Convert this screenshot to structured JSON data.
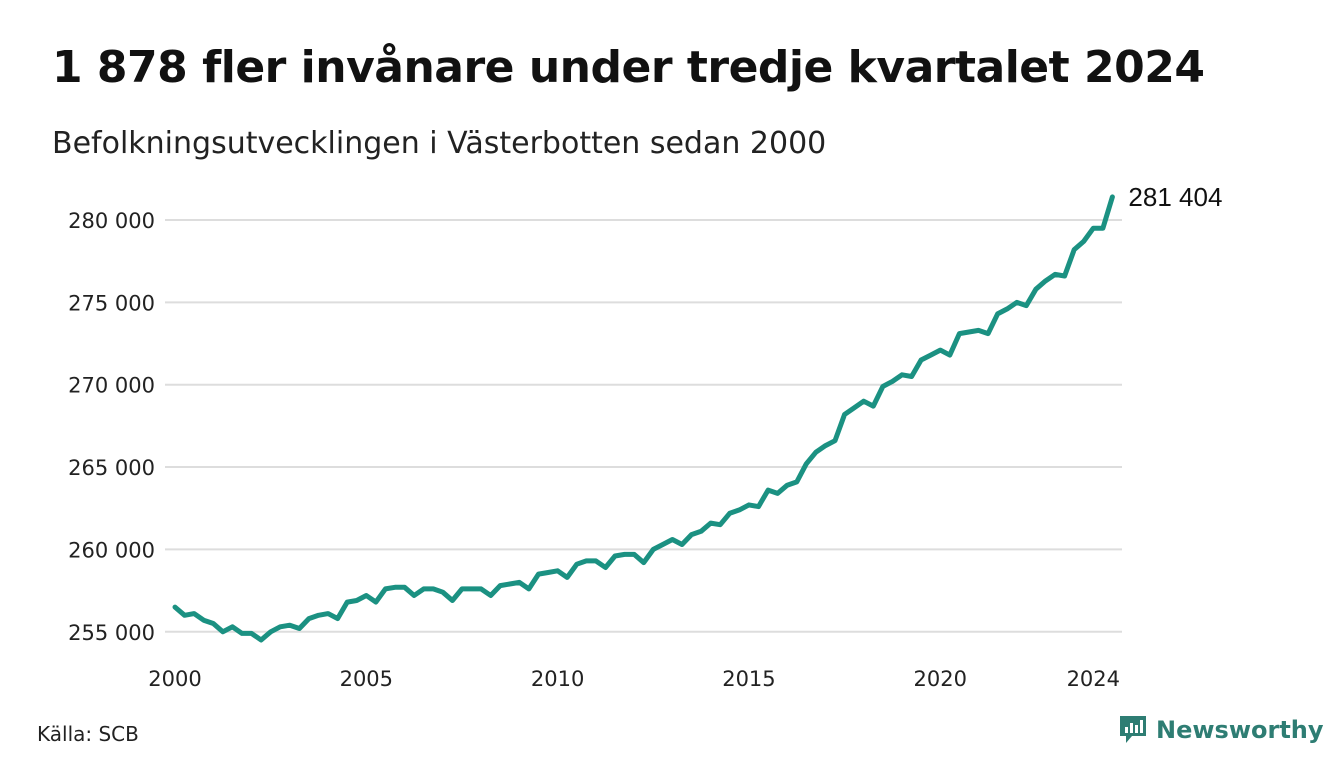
{
  "title": "1 878 fler invånare under tredje kvartalet 2024",
  "subtitle": "Befolkningsutvecklingen i Västerbotten sedan 2000",
  "source": "Källa: SCB",
  "brand": {
    "name": "Newsworthy",
    "icon": "newsworthy-chart-logo-icon"
  },
  "colors": {
    "line": "#1b9182",
    "grid": "#dddddd",
    "brand": "#2e7d73"
  },
  "chart_data": {
    "type": "line",
    "title": "1 878 fler invånare under tredje kvartalet 2024",
    "subtitle": "Befolkningsutvecklingen i Västerbotten sedan 2000",
    "xlabel": "",
    "ylabel": "",
    "xlim": [
      2000,
      2024.75
    ],
    "ylim": [
      254500,
      281700
    ],
    "x_ticks": [
      2000,
      2005,
      2010,
      2015,
      2020,
      2024
    ],
    "y_ticks": [
      255000,
      260000,
      265000,
      270000,
      275000,
      280000
    ],
    "y_tick_labels": [
      "255 000",
      "260 000",
      "265 000",
      "270 000",
      "275 000",
      "280 000"
    ],
    "grid": "horizontal",
    "end_label": "281 404",
    "series": [
      {
        "values": [
          [
            2000.0,
            256500
          ],
          [
            2000.25,
            256000
          ],
          [
            2000.5,
            256100
          ],
          [
            2000.75,
            255700
          ],
          [
            2001.0,
            255500
          ],
          [
            2001.25,
            255000
          ],
          [
            2001.5,
            255300
          ],
          [
            2001.75,
            254900
          ],
          [
            2002.0,
            254900
          ],
          [
            2002.25,
            254500
          ],
          [
            2002.5,
            255000
          ],
          [
            2002.75,
            255300
          ],
          [
            2003.0,
            255400
          ],
          [
            2003.25,
            255200
          ],
          [
            2003.5,
            255800
          ],
          [
            2003.75,
            256000
          ],
          [
            2004.0,
            256100
          ],
          [
            2004.25,
            255800
          ],
          [
            2004.5,
            256800
          ],
          [
            2004.75,
            256900
          ],
          [
            2005.0,
            257200
          ],
          [
            2005.25,
            256800
          ],
          [
            2005.5,
            257600
          ],
          [
            2005.75,
            257700
          ],
          [
            2006.0,
            257700
          ],
          [
            2006.25,
            257200
          ],
          [
            2006.5,
            257600
          ],
          [
            2006.75,
            257600
          ],
          [
            2007.0,
            257400
          ],
          [
            2007.25,
            256900
          ],
          [
            2007.5,
            257600
          ],
          [
            2007.75,
            257600
          ],
          [
            2008.0,
            257600
          ],
          [
            2008.25,
            257200
          ],
          [
            2008.5,
            257800
          ],
          [
            2008.75,
            257900
          ],
          [
            2009.0,
            258000
          ],
          [
            2009.25,
            257600
          ],
          [
            2009.5,
            258500
          ],
          [
            2009.75,
            258600
          ],
          [
            2010.0,
            258700
          ],
          [
            2010.25,
            258300
          ],
          [
            2010.5,
            259100
          ],
          [
            2010.75,
            259300
          ],
          [
            2011.0,
            259300
          ],
          [
            2011.25,
            258900
          ],
          [
            2011.5,
            259600
          ],
          [
            2011.75,
            259700
          ],
          [
            2012.0,
            259700
          ],
          [
            2012.25,
            259200
          ],
          [
            2012.5,
            260000
          ],
          [
            2012.75,
            260300
          ],
          [
            2013.0,
            260600
          ],
          [
            2013.25,
            260300
          ],
          [
            2013.5,
            260900
          ],
          [
            2013.75,
            261100
          ],
          [
            2014.0,
            261600
          ],
          [
            2014.25,
            261500
          ],
          [
            2014.5,
            262200
          ],
          [
            2014.75,
            262400
          ],
          [
            2015.0,
            262700
          ],
          [
            2015.25,
            262600
          ],
          [
            2015.5,
            263600
          ],
          [
            2015.75,
            263400
          ],
          [
            2016.0,
            263900
          ],
          [
            2016.25,
            264100
          ],
          [
            2016.5,
            265200
          ],
          [
            2016.75,
            265900
          ],
          [
            2017.0,
            266300
          ],
          [
            2017.25,
            266600
          ],
          [
            2017.5,
            268200
          ],
          [
            2017.75,
            268600
          ],
          [
            2018.0,
            269000
          ],
          [
            2018.25,
            268700
          ],
          [
            2018.5,
            269900
          ],
          [
            2018.75,
            270200
          ],
          [
            2019.0,
            270600
          ],
          [
            2019.25,
            270500
          ],
          [
            2019.5,
            271500
          ],
          [
            2019.75,
            271800
          ],
          [
            2020.0,
            272100
          ],
          [
            2020.25,
            271800
          ],
          [
            2020.5,
            273100
          ],
          [
            2020.75,
            273200
          ],
          [
            2021.0,
            273300
          ],
          [
            2021.25,
            273100
          ],
          [
            2021.5,
            274300
          ],
          [
            2021.75,
            274600
          ],
          [
            2022.0,
            275000
          ],
          [
            2022.25,
            274800
          ],
          [
            2022.5,
            275800
          ],
          [
            2022.75,
            276300
          ],
          [
            2023.0,
            276700
          ],
          [
            2023.25,
            276600
          ],
          [
            2023.5,
            278200
          ],
          [
            2023.75,
            278700
          ],
          [
            2024.0,
            279500
          ],
          [
            2024.25,
            279500
          ],
          [
            2024.5,
            281404
          ]
        ]
      }
    ]
  }
}
